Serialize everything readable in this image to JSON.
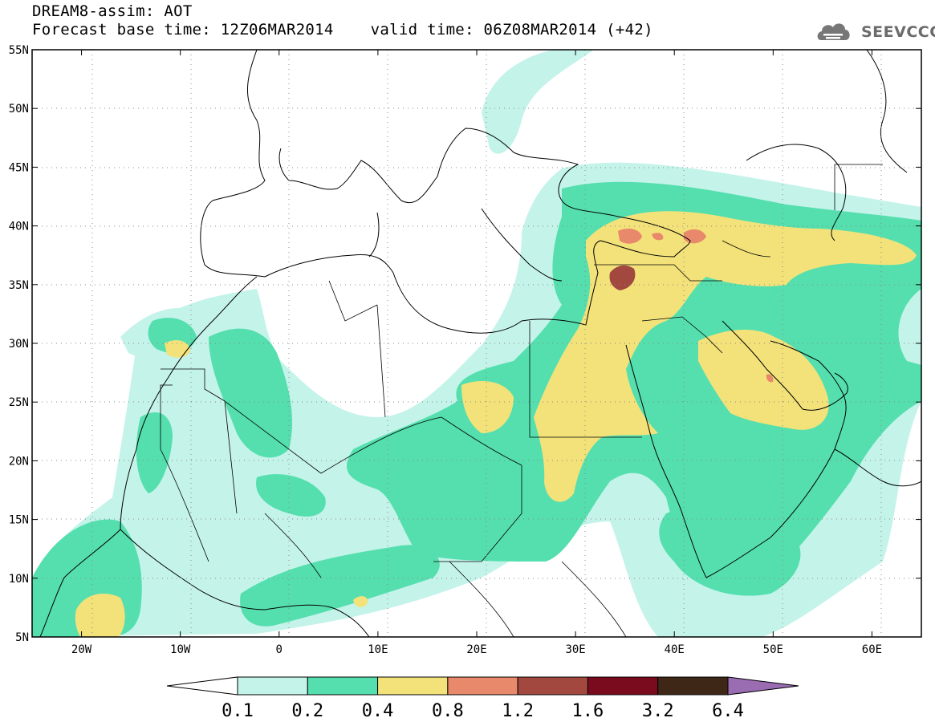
{
  "title": {
    "line1": "DREAM8-assim: AOT",
    "base_time": "Forecast base time: 12Z06MAR2014",
    "valid_time": "valid time: 06Z08MAR2014 (+42)"
  },
  "logo": {
    "text": "SEEVCCC",
    "icon": "cloud-icon"
  },
  "map": {
    "lon_range": [
      -25,
      65
    ],
    "lat_range": [
      5,
      55
    ],
    "lon_ticks": [
      {
        "v": -20,
        "label": "20W"
      },
      {
        "v": -10,
        "label": "10W"
      },
      {
        "v": 0,
        "label": "0"
      },
      {
        "v": 10,
        "label": "10E"
      },
      {
        "v": 20,
        "label": "20E"
      },
      {
        "v": 30,
        "label": "30E"
      },
      {
        "v": 40,
        "label": "40E"
      },
      {
        "v": 50,
        "label": "50E"
      },
      {
        "v": 60,
        "label": "60E"
      }
    ],
    "lat_ticks": [
      {
        "v": 55,
        "label": "55N"
      },
      {
        "v": 50,
        "label": "50N"
      },
      {
        "v": 45,
        "label": "45N"
      },
      {
        "v": 40,
        "label": "40N"
      },
      {
        "v": 35,
        "label": "35N"
      },
      {
        "v": 30,
        "label": "30N"
      },
      {
        "v": 25,
        "label": "25N"
      },
      {
        "v": 20,
        "label": "20N"
      },
      {
        "v": 15,
        "label": "15N"
      },
      {
        "v": 10,
        "label": "10N"
      },
      {
        "v": 5,
        "label": "5N"
      }
    ]
  },
  "colorbar": {
    "levels": [
      "0.1",
      "0.2",
      "0.4",
      "0.8",
      "1.2",
      "1.6",
      "3.2",
      "6.4"
    ],
    "colors": [
      "#ffffff",
      "#c4f3ea",
      "#55dfae",
      "#f3e27a",
      "#e8896b",
      "#a2483f",
      "#7a0a1e",
      "#3e2716",
      "#9a6cb2"
    ]
  },
  "colors": {
    "level1": "#c4f3ea",
    "level2": "#55dfae",
    "level3": "#f3e27a",
    "level4": "#e8896b",
    "level5": "#a2483f",
    "coast": "#000000"
  }
}
